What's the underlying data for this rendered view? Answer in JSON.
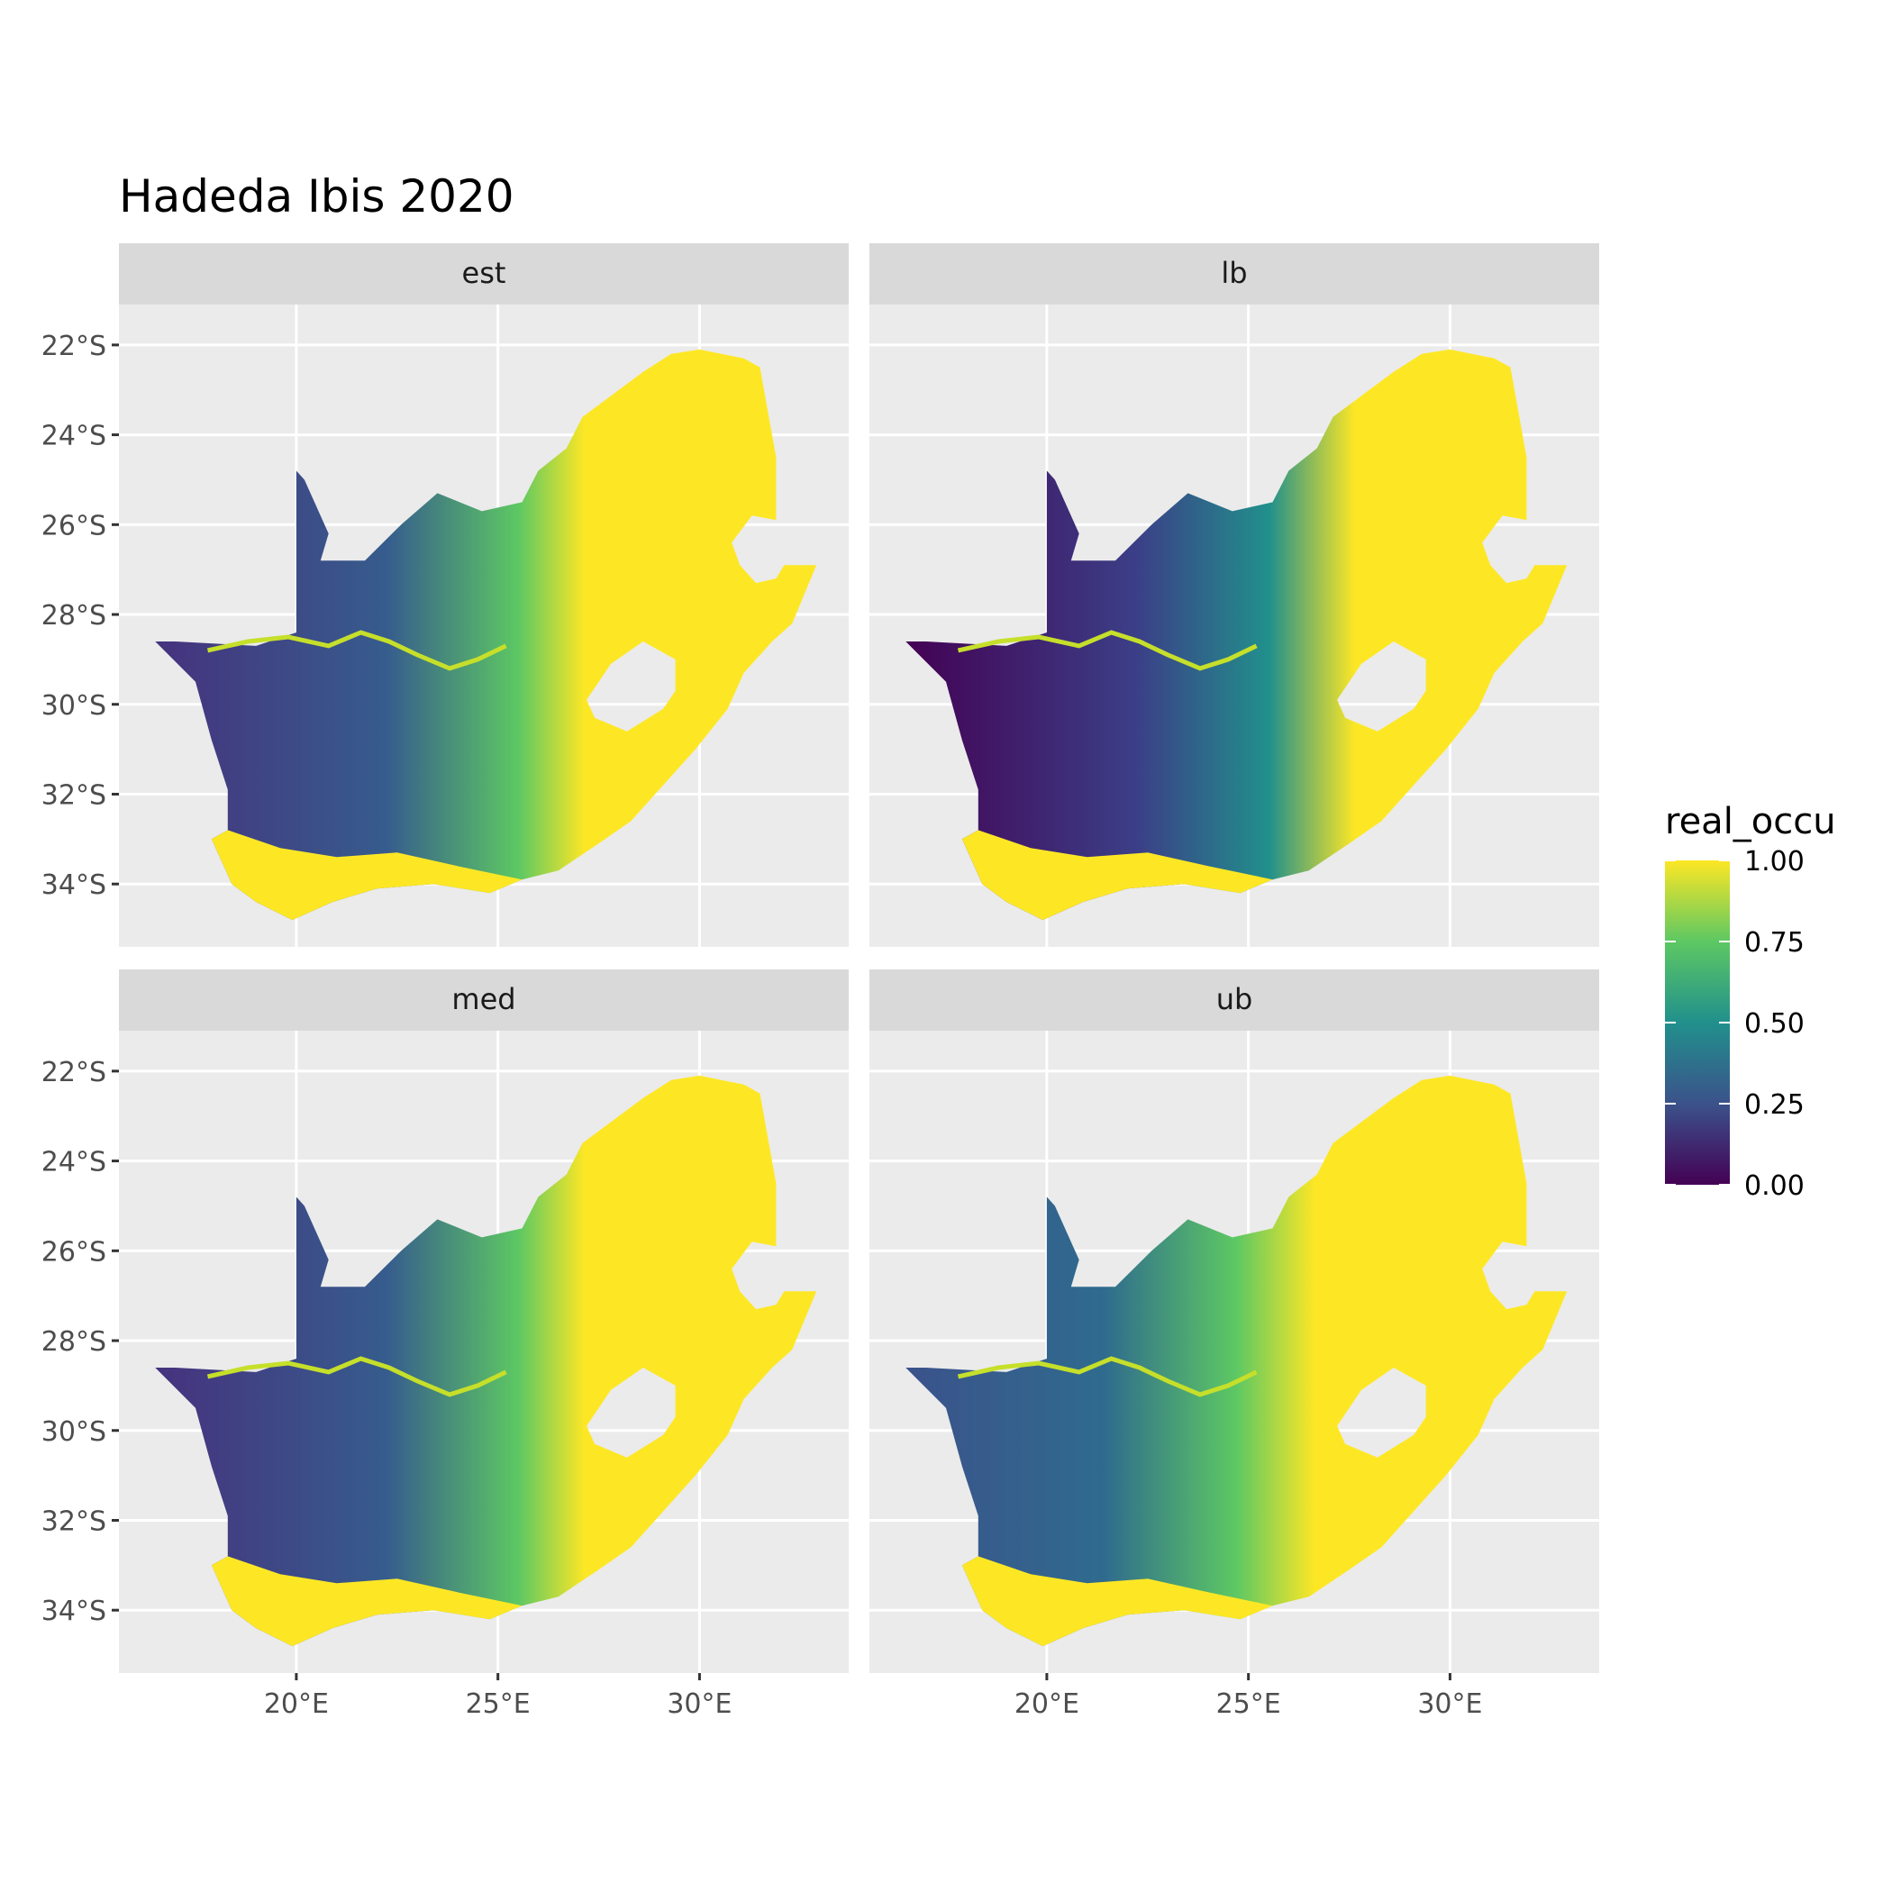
{
  "title": "Hadeda Ibis 2020",
  "chart_data": {
    "type": "heatmap",
    "title": "Hadeda Ibis 2020",
    "facets": [
      "est",
      "lb",
      "med",
      "ub"
    ],
    "x_ticks": [
      {
        "value": 20,
        "label": "20°E"
      },
      {
        "value": 25,
        "label": "25°E"
      },
      {
        "value": 30,
        "label": "30°E"
      }
    ],
    "y_ticks": [
      {
        "value": -22,
        "label": "22°S"
      },
      {
        "value": -24,
        "label": "24°S"
      },
      {
        "value": -26,
        "label": "26°S"
      },
      {
        "value": -28,
        "label": "28°S"
      },
      {
        "value": -30,
        "label": "30°S"
      },
      {
        "value": -32,
        "label": "32°S"
      },
      {
        "value": -34,
        "label": "34°S"
      }
    ],
    "xlim": [
      15.6,
      33.7
    ],
    "ylim": [
      -35.4,
      -21.1
    ],
    "grid": true,
    "legend": {
      "title": "real_occu",
      "position": "right",
      "breaks": [
        1.0,
        0.75,
        0.5,
        0.25,
        0.0
      ],
      "labels": [
        "1.00",
        "0.75",
        "0.50",
        "0.25",
        "0.00"
      ],
      "range": [
        0,
        1
      ],
      "palette": "viridis",
      "colors": [
        "#440154",
        "#3b528b",
        "#21908c",
        "#5dc863",
        "#fde725"
      ]
    },
    "colors": {
      "panel_bg": "#ebebeb",
      "strip_bg": "#d9d9d9",
      "grid": "#ffffff"
    }
  }
}
